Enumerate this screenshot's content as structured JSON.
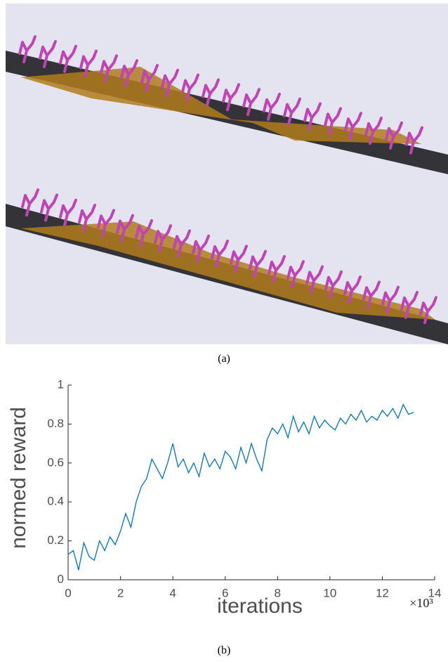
{
  "captions": [
    "(a)",
    "(b)"
  ],
  "chart_data": {
    "type": "line",
    "xlabel": "iterations",
    "ylabel": "normed reward",
    "x_scale_label": "×10³",
    "x": [
      0,
      0.2,
      0.4,
      0.6,
      0.8,
      1,
      1.2,
      1.4,
      1.6,
      1.8,
      2,
      2.2,
      2.4,
      2.6,
      2.8,
      3,
      3.2,
      3.4,
      3.6,
      3.8,
      4,
      4.2,
      4.4,
      4.6,
      4.8,
      5,
      5.2,
      5.4,
      5.6,
      5.8,
      6,
      6.2,
      6.4,
      6.6,
      6.8,
      7,
      7.2,
      7.4,
      7.6,
      7.8,
      8,
      8.2,
      8.4,
      8.6,
      8.8,
      9,
      9.2,
      9.4,
      9.6,
      9.8,
      10,
      10.2,
      10.4,
      10.6,
      10.8,
      11,
      11.2,
      11.4,
      11.6,
      11.8,
      12,
      12.2,
      12.4,
      12.6,
      12.8,
      13,
      13.2
    ],
    "values": [
      0.13,
      0.15,
      0.05,
      0.19,
      0.12,
      0.1,
      0.2,
      0.15,
      0.22,
      0.18,
      0.25,
      0.34,
      0.27,
      0.4,
      0.48,
      0.52,
      0.62,
      0.57,
      0.52,
      0.6,
      0.7,
      0.58,
      0.62,
      0.55,
      0.6,
      0.53,
      0.65,
      0.58,
      0.62,
      0.57,
      0.66,
      0.63,
      0.57,
      0.68,
      0.6,
      0.7,
      0.62,
      0.56,
      0.72,
      0.78,
      0.75,
      0.8,
      0.73,
      0.84,
      0.76,
      0.81,
      0.75,
      0.84,
      0.78,
      0.82,
      0.79,
      0.77,
      0.83,
      0.8,
      0.85,
      0.82,
      0.87,
      0.81,
      0.84,
      0.82,
      0.87,
      0.84,
      0.88,
      0.83,
      0.9,
      0.85,
      0.86
    ],
    "color": "#0072bd",
    "xlim": [
      0,
      14
    ],
    "xticks": [
      0,
      2,
      4,
      6,
      8,
      10,
      12,
      14
    ],
    "ylim": [
      0,
      1
    ],
    "yticks": [
      0,
      0.2,
      0.4,
      0.6,
      0.8,
      1
    ],
    "grid": false
  }
}
